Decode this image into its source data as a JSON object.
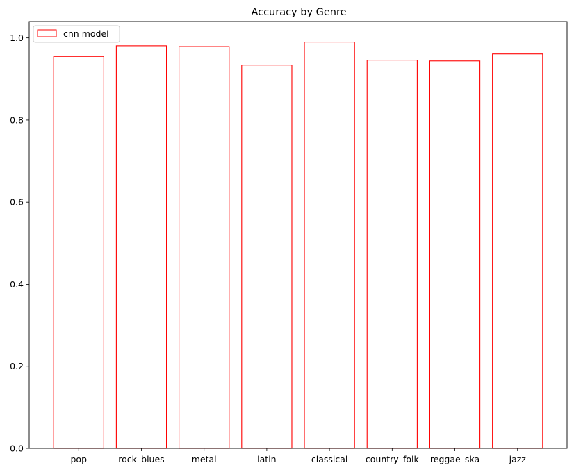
{
  "chart_data": {
    "type": "bar",
    "title": "Accuracy by Genre",
    "xlabel": "",
    "ylabel": "",
    "categories": [
      "pop",
      "rock_blues",
      "metal",
      "latin",
      "classical",
      "country_folk",
      "reggae_ska",
      "jazz"
    ],
    "series": [
      {
        "name": "cnn model",
        "values": [
          0.955,
          0.981,
          0.979,
          0.934,
          0.99,
          0.946,
          0.944,
          0.961
        ],
        "color": "#ff0000"
      }
    ],
    "ylim": [
      0,
      1.04
    ],
    "yticks": [
      0.0,
      0.2,
      0.4,
      0.6,
      0.8,
      1.0
    ],
    "ytick_labels": [
      "0.0",
      "0.2",
      "0.4",
      "0.6",
      "0.8",
      "1.0"
    ],
    "grid": false,
    "legend": "top-left"
  }
}
